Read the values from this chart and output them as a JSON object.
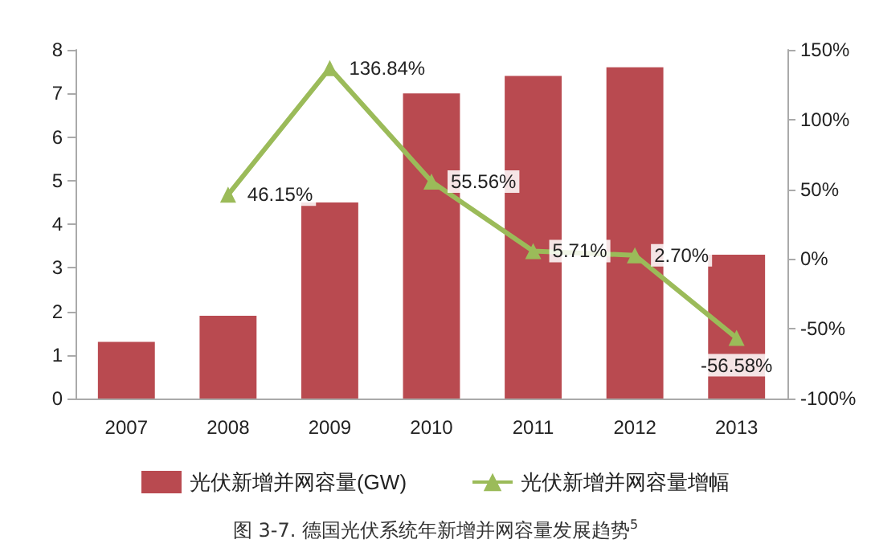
{
  "chart_data": {
    "type": "bar",
    "categories": [
      "2007",
      "2008",
      "2009",
      "2010",
      "2011",
      "2012",
      "2013"
    ],
    "series": [
      {
        "name": "光伏新增并网容量(GW)",
        "color": "#b94a50",
        "values": [
          1.3,
          1.9,
          4.5,
          7.0,
          7.4,
          7.6,
          3.3
        ]
      },
      {
        "name": "光伏新增并网容量增幅",
        "type": "line",
        "axis": "y2",
        "color": "#9bbb59",
        "marker": "triangle",
        "values": [
          null,
          46.15,
          136.84,
          55.56,
          5.71,
          2.7,
          -56.58
        ],
        "value_labels": [
          null,
          "46.15%",
          "136.84%",
          "55.56%",
          "5.71%",
          "2.70%",
          "-56.58%"
        ]
      }
    ],
    "ylim": [
      0,
      8
    ],
    "yticks": [
      0,
      1,
      2,
      3,
      4,
      5,
      6,
      7,
      8
    ],
    "y2lim": [
      -100,
      150
    ],
    "y2ticks": [
      {
        "value": -100,
        "label": "-100%"
      },
      {
        "value": -50,
        "label": "-50%"
      },
      {
        "value": 0,
        "label": "0%"
      },
      {
        "value": 50,
        "label": "50%"
      },
      {
        "value": 100,
        "label": "100%"
      },
      {
        "value": 150,
        "label": "150%"
      }
    ],
    "grid": false,
    "legend": "bottom",
    "annotations": [
      "图 3-7. 德国光伏系统年新增并网容量发展趋势$^{5}$"
    ]
  }
}
